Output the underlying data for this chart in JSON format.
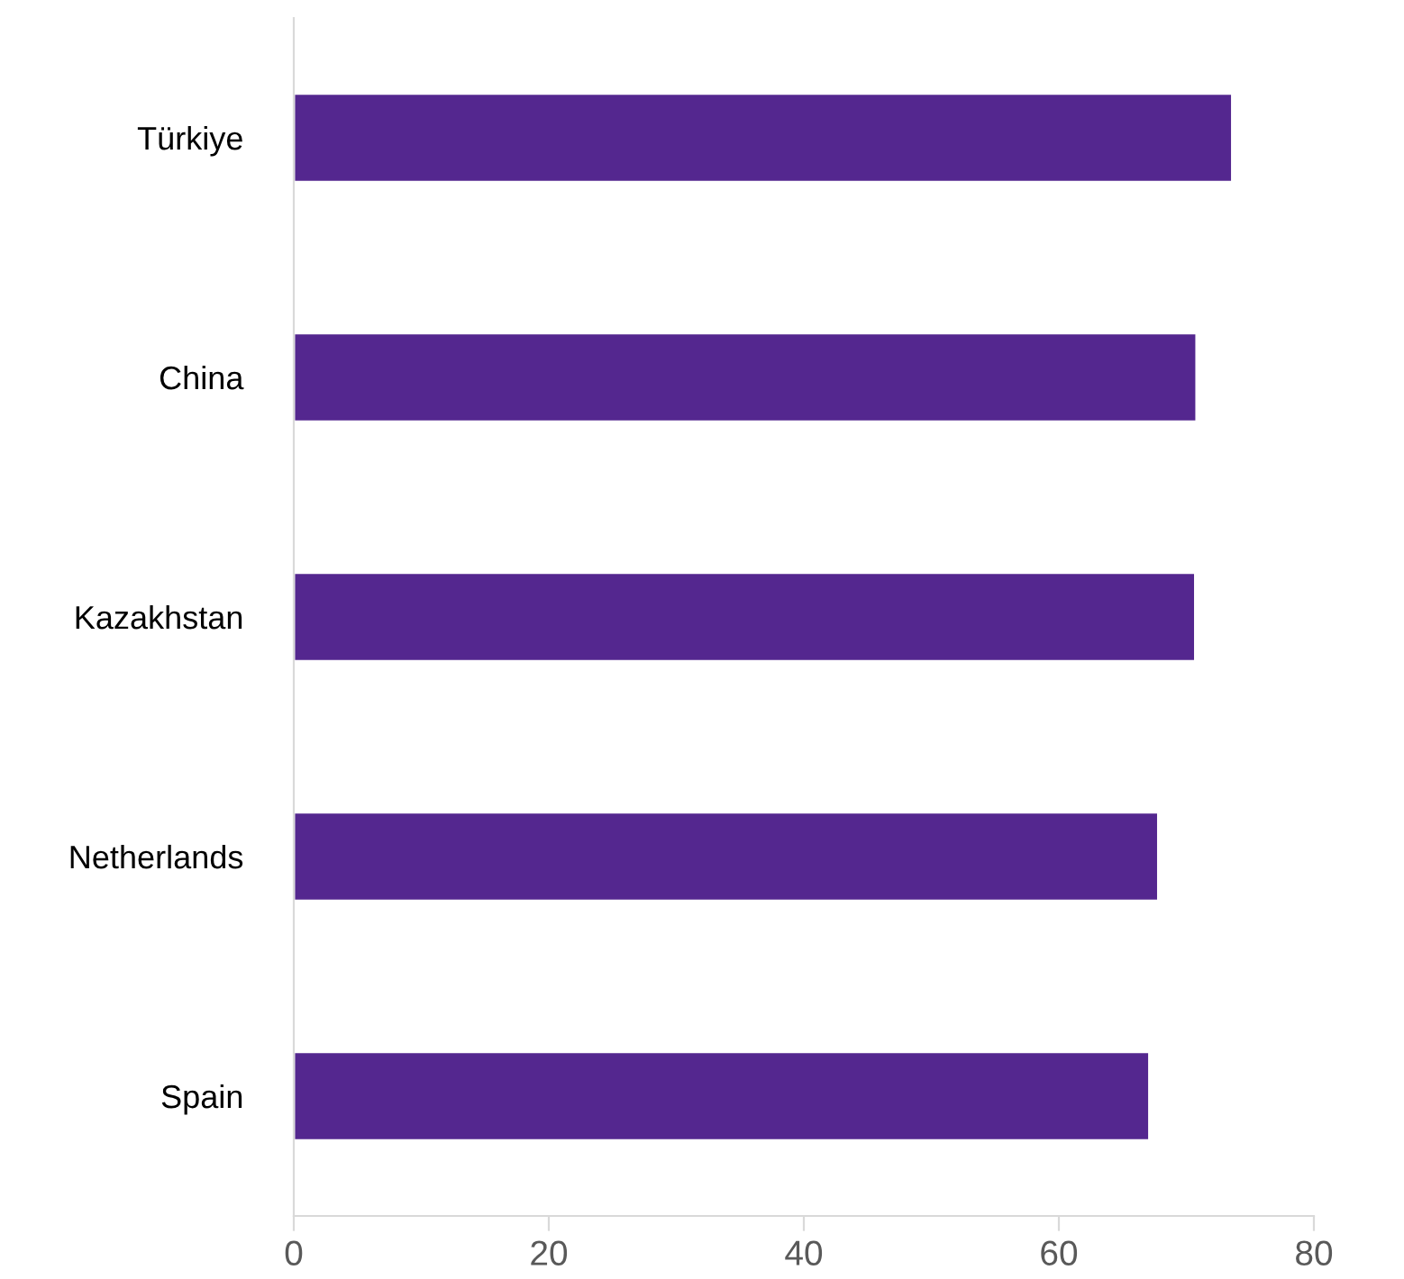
{
  "chart_data": {
    "type": "bar",
    "orientation": "horizontal",
    "categories": [
      "Türkiye",
      "China",
      "Kazakhstan",
      "Netherlands",
      "Spain"
    ],
    "values": [
      73.6,
      70.8,
      70.7,
      67.8,
      67.1
    ],
    "color": "#54278f",
    "xlim": [
      0,
      80
    ],
    "xticks": [
      0,
      20,
      40,
      60,
      80
    ],
    "grid": false,
    "legend": false
  }
}
